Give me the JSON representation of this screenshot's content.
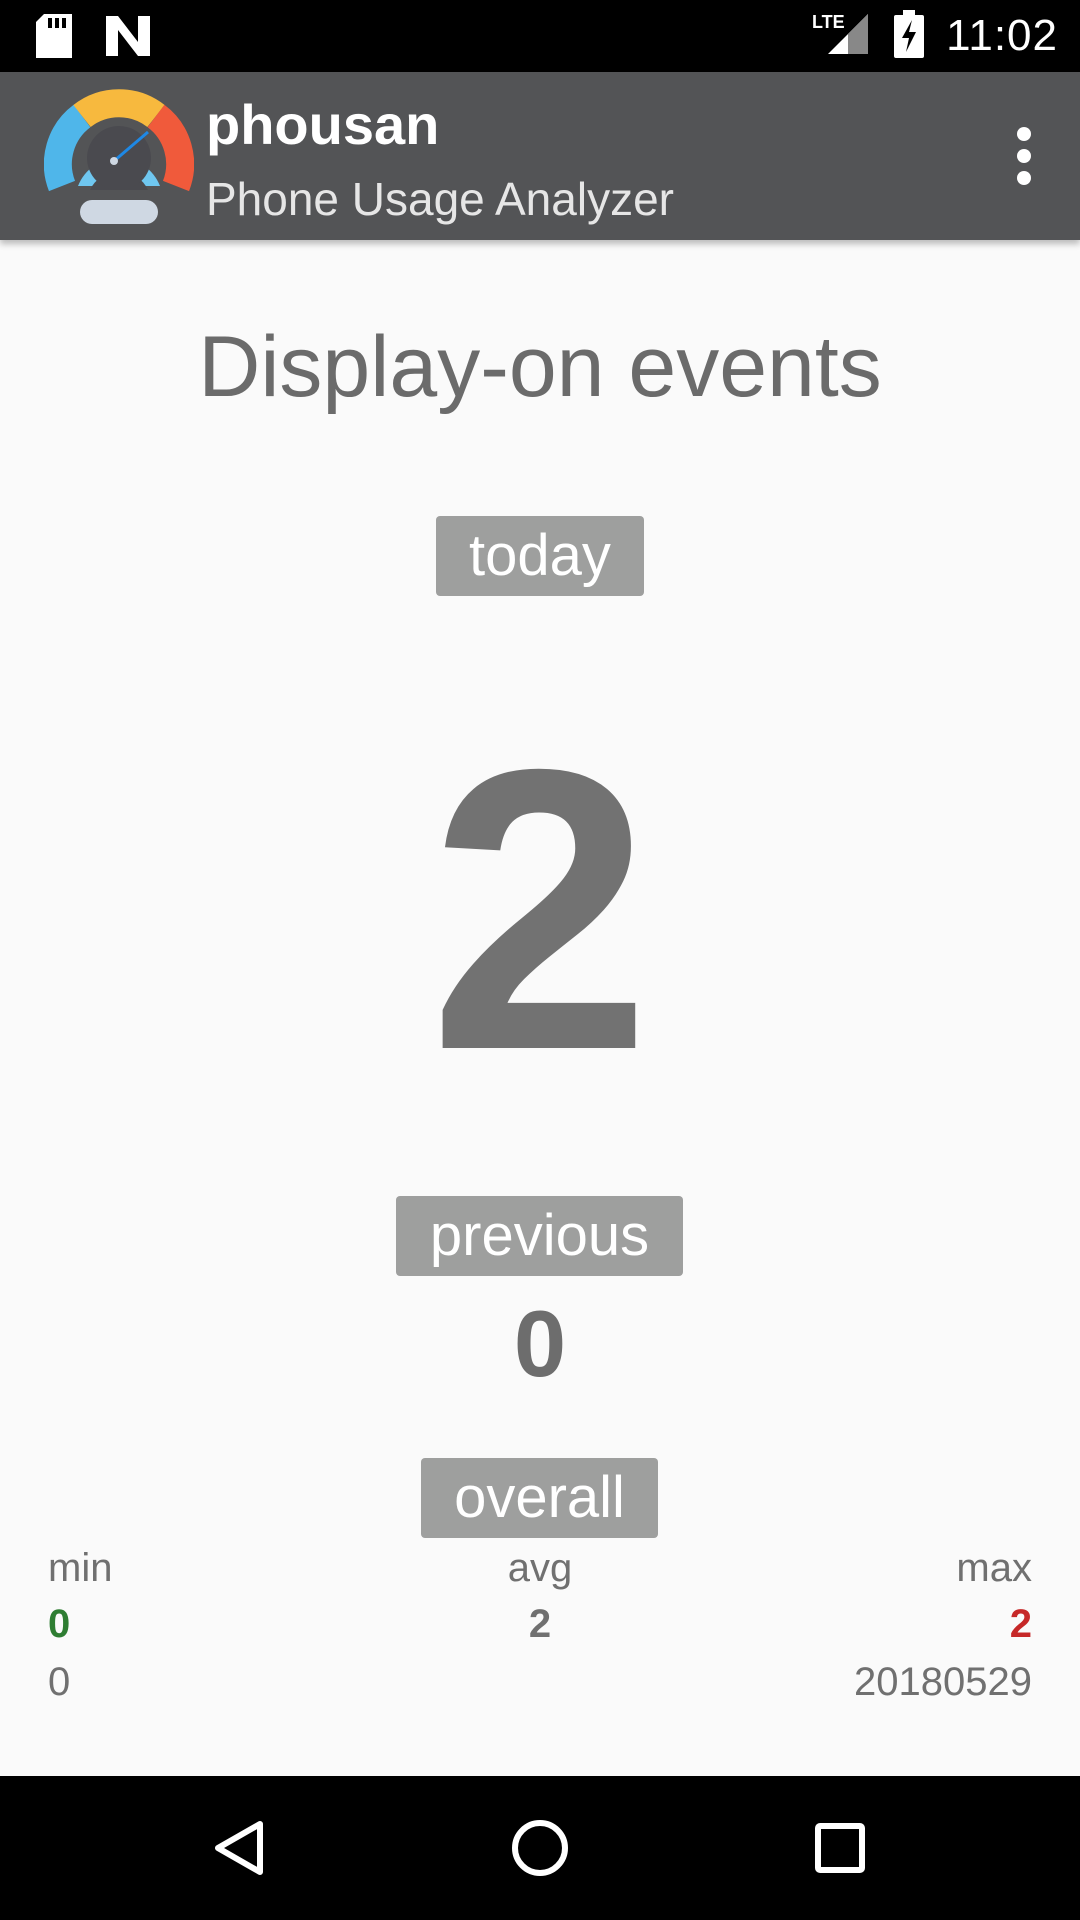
{
  "status_bar": {
    "time": "11:02",
    "network": "LTE",
    "icons": [
      "sd-card-icon",
      "n-notification-icon",
      "lte-signal-icon",
      "battery-charging-icon"
    ]
  },
  "app_bar": {
    "title": "phousan",
    "subtitle": "Phone Usage Analyzer",
    "icons": [
      "speedometer-logo-icon",
      "overflow-menu-icon"
    ]
  },
  "main": {
    "heading": "Display-on events",
    "today_label": "today",
    "today_value": "2",
    "previous_label": "previous",
    "previous_value": "0",
    "overall_label": "overall"
  },
  "stats": {
    "min": {
      "label": "min",
      "value": "0",
      "sub": "0",
      "color": "#2e7d32"
    },
    "avg": {
      "label": "avg",
      "value": "2",
      "color": "#707070"
    },
    "max": {
      "label": "max",
      "value": "2",
      "sub": "20180529",
      "color": "#c62828"
    }
  },
  "nav_bar": {
    "icons": [
      "back-icon",
      "home-icon",
      "recents-icon"
    ]
  },
  "colors": {
    "app_bar": "#535456",
    "chip": "#9e9f9e",
    "text": "#727272"
  }
}
